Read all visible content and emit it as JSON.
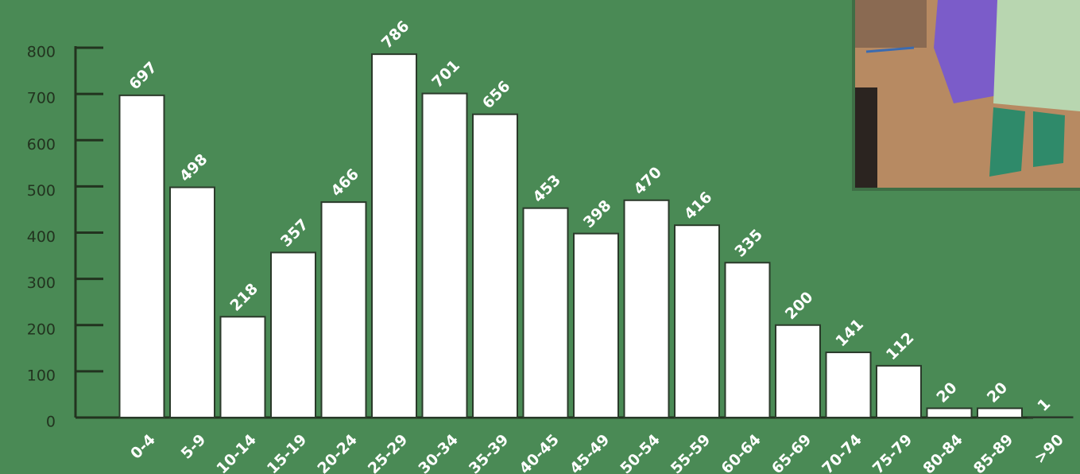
{
  "chart_data": {
    "type": "bar",
    "categories": [
      "0-4",
      "5-9",
      "10-14",
      "15-19",
      "20-24",
      "25-29",
      "30-34",
      "35-39",
      "40-45",
      "45-49",
      "50-54",
      "55-59",
      "60-64",
      "65-69",
      "70-74",
      "75-79",
      "80-84",
      "85-89",
      ">90"
    ],
    "values": [
      697,
      498,
      218,
      357,
      466,
      786,
      701,
      656,
      453,
      398,
      470,
      416,
      335,
      200,
      141,
      112,
      20,
      20,
      1
    ],
    "color": "#ffffff",
    "ylim": [
      0,
      800
    ],
    "yticks": [
      0,
      100,
      200,
      300,
      400,
      500,
      600,
      700,
      800
    ]
  }
}
